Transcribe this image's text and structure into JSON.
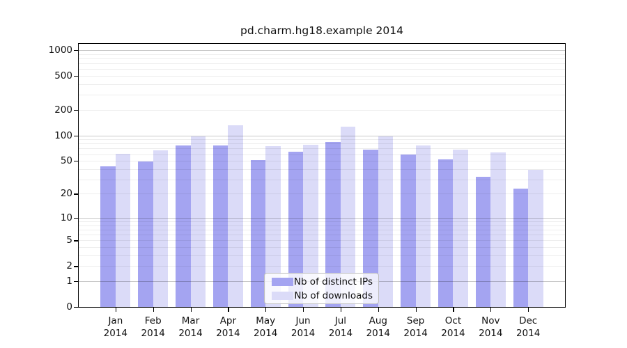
{
  "title": "pd.charm.hg18.example 2014",
  "chart_data": {
    "type": "bar",
    "title": "pd.charm.hg18.example 2014",
    "yscale": "log1p",
    "grid": true,
    "legend_position": "lower center",
    "xlabel": "",
    "ylabel": "",
    "ylim": [
      0,
      1200
    ],
    "yticks": [
      0,
      1,
      2,
      5,
      10,
      20,
      50,
      100,
      200,
      500,
      1000
    ],
    "major_gridlines": [
      1,
      10,
      100,
      1000
    ],
    "categories": [
      "Jan 2014",
      "Feb 2014",
      "Mar 2014",
      "Apr 2014",
      "May 2014",
      "Jun 2014",
      "Jul 2014",
      "Aug 2014",
      "Sep 2014",
      "Oct 2014",
      "Nov 2014",
      "Dec 2014"
    ],
    "series": [
      {
        "name": "Nb of distinct IPs",
        "color": "#a4a4f1",
        "values": [
          43,
          49,
          76,
          76,
          51,
          64,
          84,
          68,
          59,
          52,
          32,
          23
        ]
      },
      {
        "name": "Nb of downloads",
        "color": "#dbdbf8",
        "values": [
          61,
          67,
          97,
          131,
          75,
          78,
          126,
          98,
          76,
          68,
          63,
          39
        ]
      }
    ]
  },
  "colors": {
    "frame": "#000000",
    "text": "#111111",
    "grid_minor": "rgba(0,0,0,0.07)",
    "grid_major": "rgba(0,0,0,0.22)",
    "legend_border": "#bdbdbd"
  }
}
